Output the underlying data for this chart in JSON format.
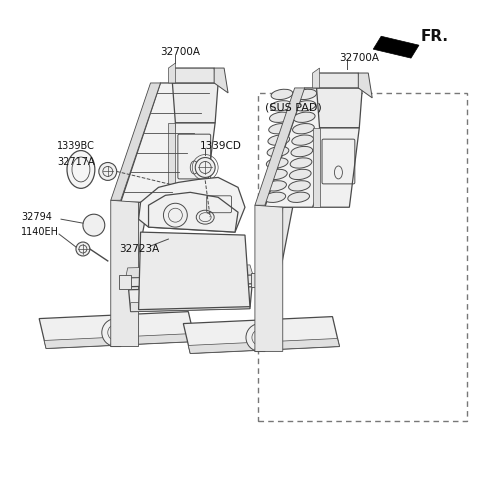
{
  "bg_color": "#ffffff",
  "line_color": "#4a4a4a",
  "fill_color": "#f8f8f8",
  "text_color": "#111111",
  "fr_label": "FR.",
  "sus_pad_label": "(SUS PAD)",
  "labels": {
    "main_pedal": "32700A",
    "sensor_bc": "1339BC",
    "sensor_17a": "32717A",
    "ball": "32794",
    "bolt": "1140EH",
    "screw": "1339CD",
    "bracket": "32723A",
    "sus_pedal": "32700A"
  },
  "figsize": [
    4.8,
    4.97
  ],
  "dpi": 100
}
